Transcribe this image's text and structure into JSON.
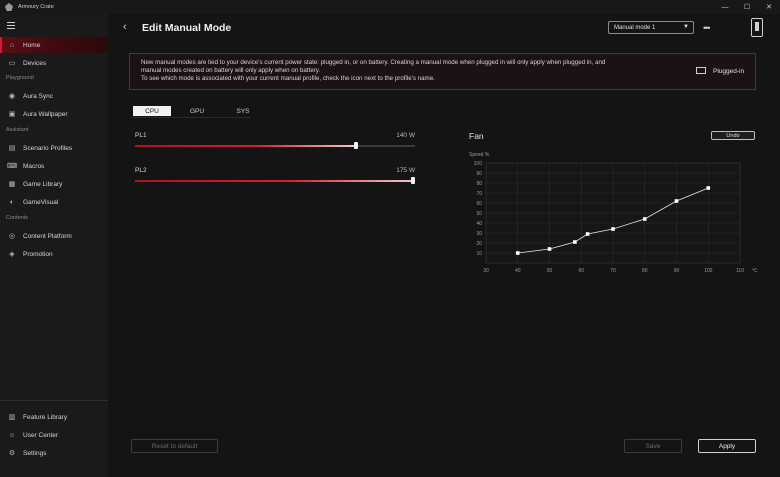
{
  "app": {
    "title": "Armoury Crate",
    "window_controls": [
      "—",
      "☐",
      "✕"
    ]
  },
  "sidebar": {
    "sections": {
      "playground": "Playground",
      "assistant": "Assistant",
      "contents": "Contents"
    },
    "items": [
      {
        "label": "Home",
        "icon": "home-icon",
        "active": true
      },
      {
        "label": "Devices",
        "icon": "devices-icon"
      },
      {
        "label": "Aura Sync",
        "icon": "aura-sync-icon"
      },
      {
        "label": "Aura Wallpaper",
        "icon": "wallpaper-icon"
      },
      {
        "label": "Scenario Profiles",
        "icon": "scenario-icon"
      },
      {
        "label": "Macros",
        "icon": "macros-icon"
      },
      {
        "label": "Game Library",
        "icon": "game-library-icon"
      },
      {
        "label": "GameVisual",
        "icon": "gamevisual-icon"
      },
      {
        "label": "Content Platform",
        "icon": "content-platform-icon"
      },
      {
        "label": "Promotion",
        "icon": "promotion-icon"
      }
    ],
    "bottom_items": [
      {
        "label": "Feature Library",
        "icon": "feature-library-icon"
      },
      {
        "label": "User Center",
        "icon": "user-icon"
      },
      {
        "label": "Settings",
        "icon": "settings-icon"
      }
    ]
  },
  "header": {
    "title": "Edit Manual Mode",
    "mode_select": "Manual mode 1"
  },
  "notice": {
    "line1": "New manual modes are tied to your device's current power state: plugged in, or on battery. Creating a manual mode when plugged in will only apply when plugged in, and",
    "line2": "manual modes created on battery will only apply when on battery.",
    "line3": "To see which mode is associated with your current manual profile, check the icon next to the profile's name.",
    "power_state": "Plugged-in"
  },
  "tabs": [
    "CPU",
    "GPU",
    "SYS"
  ],
  "sliders": [
    {
      "label": "PL1",
      "value": "140 W",
      "level": 0.79
    },
    {
      "label": "PL2",
      "value": "175 W",
      "level": 1.0
    }
  ],
  "fan": {
    "title": "Fan",
    "undo_label": "Undo"
  },
  "chart_data": {
    "type": "line",
    "title": "Fan",
    "ylabel": "Speed %",
    "xlabel": "℃",
    "x_ticks": [
      30,
      40,
      50,
      60,
      70,
      80,
      90,
      100,
      110
    ],
    "y_ticks": [
      10,
      20,
      30,
      40,
      50,
      60,
      70,
      80,
      90,
      100
    ],
    "xlim": [
      30,
      110
    ],
    "ylim": [
      0,
      100
    ],
    "grid": true,
    "series": [
      {
        "x": [
          40,
          50,
          58,
          62,
          70,
          80,
          90,
          100
        ],
        "y": [
          10,
          14,
          21,
          29,
          34,
          44,
          62,
          75
        ]
      }
    ]
  },
  "buttons": {
    "reset": "Reset to default",
    "save": "Save",
    "apply": "Apply"
  },
  "colors": {
    "accent": "#e0152a",
    "border_red": "#9a1220"
  }
}
